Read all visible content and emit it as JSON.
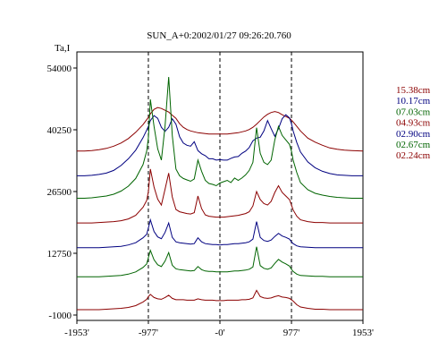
{
  "chart_data": {
    "type": "line",
    "title": "SUN_A+0:2002/01/27 09:26:20.760",
    "ylabel": "Ta,I",
    "xlabel": "",
    "xlim": [
      -1953,
      1953
    ],
    "ylim": [
      -1000,
      54000
    ],
    "x_ticks": [
      "-1953'",
      "-977'",
      "-0'",
      "977'",
      "1953'"
    ],
    "y_ticks": [
      "54000",
      "40250",
      "26500",
      "12750",
      "-1000"
    ],
    "y_tick_values": [
      54000,
      40250,
      26500,
      12750,
      -1000
    ],
    "limb_markers": [
      -977,
      0,
      977
    ],
    "x": [
      -1953,
      -1850,
      -1750,
      -1650,
      -1550,
      -1450,
      -1350,
      -1250,
      -1150,
      -1050,
      -1000,
      -977,
      -950,
      -900,
      -850,
      -800,
      -750,
      -700,
      -650,
      -600,
      -550,
      -500,
      -450,
      -400,
      -350,
      -300,
      -250,
      -200,
      -150,
      -100,
      -50,
      0,
      50,
      100,
      150,
      200,
      250,
      300,
      350,
      400,
      450,
      500,
      550,
      600,
      650,
      700,
      750,
      800,
      850,
      900,
      950,
      977,
      1000,
      1050,
      1100,
      1200,
      1300,
      1400,
      1500,
      1600,
      1700,
      1800,
      1953
    ],
    "series": [
      {
        "name": "15.38cm",
        "color": "#8b0000",
        "values": [
          35500,
          35500,
          35600,
          35800,
          36100,
          36600,
          37300,
          38300,
          39700,
          41400,
          42500,
          43000,
          43800,
          44800,
          45200,
          45000,
          44600,
          44200,
          43500,
          42800,
          41600,
          40800,
          40300,
          40000,
          39800,
          39600,
          39500,
          39400,
          39300,
          39300,
          39300,
          39300,
          39300,
          39300,
          39400,
          39500,
          39600,
          39800,
          40000,
          40300,
          40800,
          41500,
          42300,
          43100,
          43700,
          44100,
          44300,
          44100,
          43600,
          43200,
          42800,
          42400,
          42000,
          41000,
          40000,
          38400,
          37500,
          36800,
          36200,
          35900,
          35700,
          35600,
          35500
        ]
      },
      {
        "name": "10.17cm",
        "color": "#000080",
        "values": [
          30000,
          30000,
          30100,
          30300,
          30600,
          31200,
          32300,
          33800,
          35700,
          38500,
          40200,
          41000,
          42300,
          43400,
          42800,
          40800,
          39900,
          40800,
          42700,
          41500,
          38700,
          37300,
          36800,
          36600,
          37600,
          35600,
          34900,
          34500,
          33800,
          33800,
          33500,
          33600,
          33500,
          33500,
          33900,
          34200,
          34300,
          35000,
          35500,
          36300,
          37800,
          38400,
          38600,
          40000,
          42300,
          40500,
          38800,
          40500,
          42700,
          43600,
          42900,
          41600,
          40000,
          37400,
          35300,
          33100,
          31800,
          31000,
          30500,
          30200,
          30100,
          30000,
          30000
        ]
      },
      {
        "name": "07.03cm",
        "color": "#006400",
        "values": [
          25000,
          25000,
          25100,
          25300,
          25500,
          25900,
          26600,
          27700,
          29400,
          32500,
          35500,
          38500,
          47000,
          41000,
          36000,
          33500,
          41000,
          52000,
          39000,
          31500,
          30000,
          29400,
          29100,
          28800,
          29300,
          33500,
          31000,
          29000,
          28300,
          28100,
          27800,
          28400,
          28700,
          29000,
          28500,
          29500,
          29000,
          29500,
          30200,
          31200,
          33000,
          40700,
          35000,
          33000,
          32500,
          33500,
          38000,
          41000,
          39000,
          38000,
          37000,
          35500,
          33500,
          30700,
          28500,
          26900,
          26100,
          25700,
          25400,
          25200,
          25100,
          25000,
          25000
        ]
      },
      {
        "name": "04.93cm",
        "color": "#8b0000",
        "values": [
          19500,
          19500,
          19500,
          19600,
          19700,
          19800,
          20000,
          20400,
          21200,
          23000,
          24500,
          26500,
          31500,
          27500,
          24800,
          23500,
          27000,
          30600,
          25300,
          22500,
          22000,
          21800,
          21600,
          21500,
          21800,
          25500,
          22700,
          21300,
          21000,
          20900,
          20800,
          20800,
          20800,
          20900,
          21000,
          21100,
          21200,
          21400,
          21600,
          22000,
          23300,
          26500,
          24700,
          23800,
          23500,
          24300,
          26300,
          27800,
          26300,
          25500,
          24700,
          23500,
          22400,
          21000,
          20200,
          19800,
          19600,
          19600,
          19500,
          19500,
          19500,
          19500,
          19500
        ]
      },
      {
        "name": "02.90cm",
        "color": "#000080",
        "values": [
          14000,
          14000,
          14000,
          14000,
          14100,
          14200,
          14300,
          14600,
          15100,
          16200,
          17000,
          18400,
          20200,
          17600,
          16400,
          16000,
          17400,
          19500,
          16300,
          15300,
          15100,
          15000,
          14900,
          14800,
          14900,
          16200,
          15300,
          14900,
          14800,
          14700,
          14700,
          14600,
          14700,
          14700,
          14800,
          14900,
          14900,
          15000,
          15100,
          15300,
          15900,
          19800,
          16300,
          15600,
          15400,
          15700,
          16500,
          17200,
          16600,
          16300,
          15900,
          15300,
          14900,
          14400,
          14200,
          14100,
          14000,
          14000,
          14000,
          14000,
          14000,
          14000,
          14000
        ]
      },
      {
        "name": "02.67cm",
        "color": "#006400",
        "values": [
          7500,
          7500,
          7500,
          7500,
          7600,
          7700,
          7800,
          8100,
          8600,
          9600,
          10400,
          11800,
          13400,
          11300,
          10200,
          9800,
          11000,
          12900,
          10100,
          9300,
          9100,
          9000,
          8900,
          8800,
          8900,
          9800,
          9100,
          8800,
          8700,
          8700,
          8600,
          8600,
          8600,
          8600,
          8700,
          8800,
          8800,
          8900,
          9000,
          9200,
          9700,
          14200,
          10000,
          9400,
          9200,
          9500,
          10500,
          11400,
          10800,
          10400,
          9900,
          9200,
          8700,
          8100,
          7800,
          7700,
          7600,
          7600,
          7500,
          7500,
          7500,
          7500,
          7500
        ]
      },
      {
        "name": "02.24cm",
        "color": "#8b0000",
        "values": [
          200,
          200,
          200,
          200,
          300,
          400,
          500,
          700,
          1100,
          1900,
          2500,
          3100,
          3600,
          2900,
          2600,
          2500,
          2900,
          3400,
          2700,
          2400,
          2400,
          2400,
          2300,
          2300,
          2300,
          2600,
          2400,
          2300,
          2300,
          2300,
          2200,
          2200,
          2200,
          2300,
          2300,
          2300,
          2300,
          2400,
          2400,
          2500,
          2800,
          4500,
          3100,
          2800,
          2700,
          2800,
          3100,
          3300,
          3000,
          2900,
          2700,
          2400,
          2100,
          1300,
          800,
          500,
          300,
          300,
          200,
          200,
          200,
          200,
          200
        ]
      }
    ]
  }
}
